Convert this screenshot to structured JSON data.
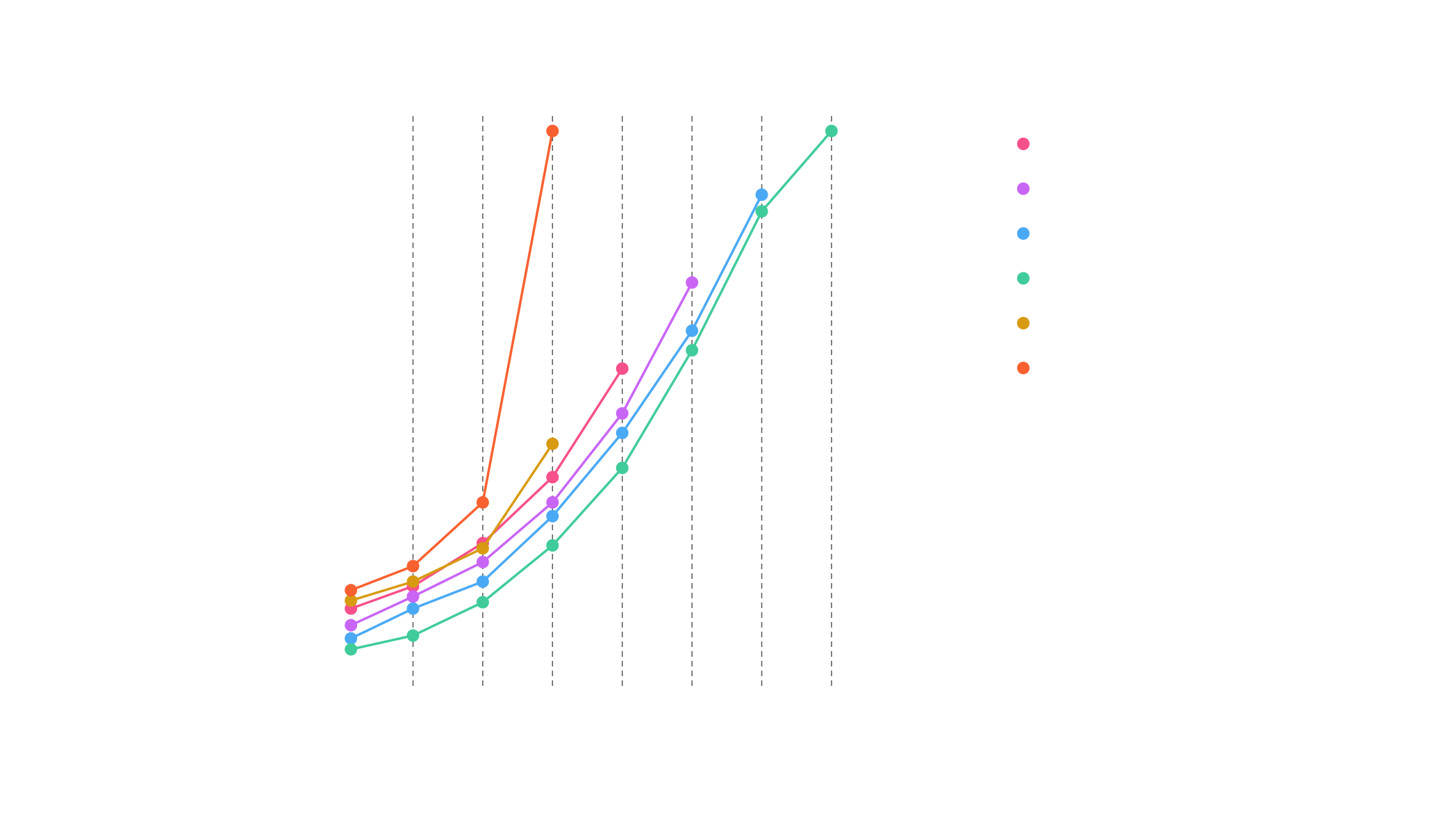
{
  "chart_data": {
    "type": "line",
    "xlim": [
      -0.3,
      7.3
    ],
    "xticks": [
      1,
      2,
      3,
      4,
      5,
      6,
      7
    ],
    "grid": true,
    "ylim": [
      0,
      100
    ],
    "legend": "right",
    "series": [
      {
        "color": "#f7508a",
        "x": [
          0.11,
          1,
          2,
          3,
          4
        ],
        "values": [
          14.2,
          18.1,
          25.6,
          37.1,
          56.0
        ]
      },
      {
        "color": "#c965f5",
        "x": [
          0.11,
          1,
          2,
          3,
          4,
          5
        ],
        "values": [
          11.3,
          16.3,
          22.3,
          32.7,
          48.2,
          71.0
        ]
      },
      {
        "color": "#4aa9f5",
        "x": [
          0.11,
          1,
          2,
          3,
          4,
          5,
          6
        ],
        "values": [
          9.0,
          14.2,
          18.9,
          30.3,
          44.8,
          62.6,
          86.3
        ]
      },
      {
        "color": "#40cc9a",
        "x": [
          0.11,
          1,
          2,
          3,
          4,
          5,
          6,
          7
        ],
        "values": [
          7.1,
          9.5,
          15.3,
          25.2,
          38.7,
          59.2,
          83.4,
          97.4
        ]
      },
      {
        "color": "#d89a10",
        "x": [
          0.11,
          1,
          2,
          3
        ],
        "values": [
          15.6,
          18.9,
          24.7,
          42.9
        ]
      },
      {
        "color": "#f96030",
        "x": [
          0.11,
          1,
          2,
          3
        ],
        "values": [
          17.4,
          21.6,
          32.7,
          97.4
        ]
      }
    ]
  }
}
